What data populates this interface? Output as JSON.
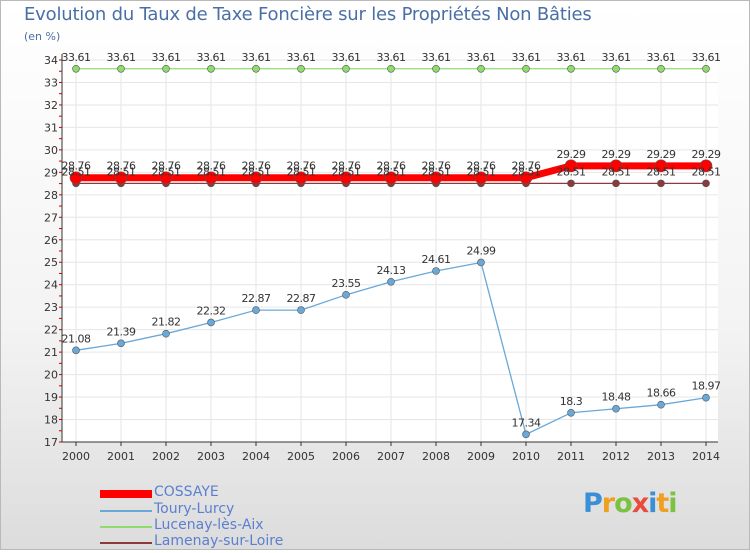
{
  "header": {
    "title": "Evolution du Taux de Taxe Foncière sur les Propriétés Non Bâties",
    "subtitle": "(en %)"
  },
  "chart_data": {
    "type": "line",
    "title": "Evolution du Taux de Taxe Foncière sur les Propriétés Non Bâties",
    "ylabel": "(en %)",
    "xlabel": "",
    "ylim": [
      17,
      34
    ],
    "yticks": [
      "17",
      "18",
      "19",
      "20",
      "21",
      "22",
      "23",
      "24",
      "25",
      "26",
      "27",
      "28",
      "29",
      "30",
      "31",
      "32",
      "33",
      "34"
    ],
    "categories": [
      "2000",
      "2001",
      "2002",
      "2003",
      "2004",
      "2005",
      "2006",
      "2007",
      "2008",
      "2009",
      "2010",
      "2011",
      "2012",
      "2013",
      "2014"
    ],
    "series": [
      {
        "name": "COSSAYE",
        "color": "#ff0000",
        "values": [
          28.76,
          28.76,
          28.76,
          28.76,
          28.76,
          28.76,
          28.76,
          28.76,
          28.76,
          28.76,
          28.76,
          29.29,
          29.29,
          29.29,
          29.29
        ],
        "labels": [
          "28.76",
          "28.76",
          "28.76",
          "28.76",
          "28.76",
          "28.76",
          "28.76",
          "28.76",
          "28.76",
          "28.76",
          "28.76",
          "29.29",
          "29.29",
          "29.29",
          "29.29"
        ]
      },
      {
        "name": "Toury-Lurcy",
        "color": "#6aa8d8",
        "values": [
          21.08,
          21.39,
          21.82,
          22.32,
          22.87,
          22.87,
          23.55,
          24.13,
          24.61,
          24.99,
          17.34,
          18.3,
          18.48,
          18.66,
          18.97
        ],
        "labels": [
          "21.08",
          "21.39",
          "21.82",
          "22.32",
          "22.87",
          "22.87",
          "23.55",
          "24.13",
          "24.61",
          "24.99",
          "17.34",
          "18.3",
          "18.48",
          "18.66",
          "18.97"
        ]
      },
      {
        "name": "Lucenay-lès-Aix",
        "color": "#8fdc6e",
        "values": [
          33.61,
          33.61,
          33.61,
          33.61,
          33.61,
          33.61,
          33.61,
          33.61,
          33.61,
          33.61,
          33.61,
          33.61,
          33.61,
          33.61,
          33.61
        ],
        "labels": [
          "33.61",
          "33.61",
          "33.61",
          "33.61",
          "33.61",
          "33.61",
          "33.61",
          "33.61",
          "33.61",
          "33.61",
          "33.61",
          "33.61",
          "33.61",
          "33.61",
          "33.61"
        ]
      },
      {
        "name": "Lamenay-sur-Loire",
        "color": "#8a3b3b",
        "values": [
          28.51,
          28.51,
          28.51,
          28.51,
          28.51,
          28.51,
          28.51,
          28.51,
          28.51,
          28.51,
          28.51,
          28.51,
          28.51,
          28.51,
          28.51
        ],
        "labels": [
          "28.51",
          "28.51",
          "28.51",
          "28.51",
          "28.51",
          "28.51",
          "28.51",
          "28.51",
          "28.51",
          "28.51",
          "28.51",
          "28.51",
          "28.51",
          "28.51",
          "28.51"
        ]
      }
    ]
  },
  "legend": [
    {
      "label": "COSSAYE"
    },
    {
      "label": "Toury-Lurcy"
    },
    {
      "label": "Lucenay-lès-Aix"
    },
    {
      "label": "Lamenay-sur-Loire"
    }
  ],
  "logo": {
    "text": "Proxiti"
  }
}
